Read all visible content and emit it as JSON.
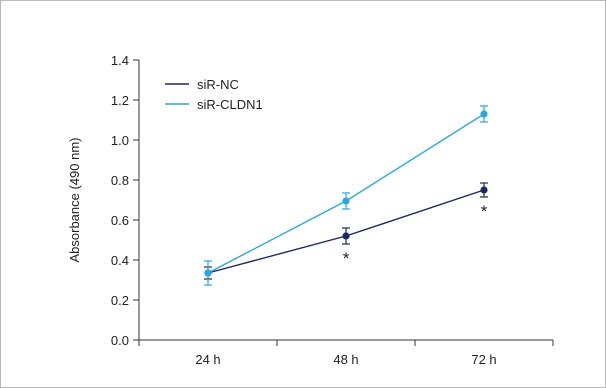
{
  "chart_data": {
    "type": "line",
    "ylabel": "Absorbance (490 nm)",
    "categories": [
      "24 h",
      "48 h",
      "72 h"
    ],
    "ylim": [
      0.0,
      1.4
    ],
    "yticks": [
      "0.0",
      "0.2",
      "0.4",
      "0.6",
      "0.8",
      "1.0",
      "1.2",
      "1.4"
    ],
    "grid": false,
    "legend_position": "top-left",
    "series": [
      {
        "name": "siR-NC",
        "color": "#1b2a5e",
        "values": [
          0.335,
          0.52,
          0.75
        ],
        "errors": [
          0.03,
          0.04,
          0.035
        ]
      },
      {
        "name": "siR-CLDN1",
        "color": "#2aa7dc",
        "values": [
          0.335,
          0.695,
          1.13
        ],
        "errors": [
          0.06,
          0.04,
          0.04
        ]
      }
    ],
    "annotations": [
      {
        "text": "*",
        "category": "48 h"
      },
      {
        "text": "*",
        "category": "72 h"
      }
    ]
  }
}
